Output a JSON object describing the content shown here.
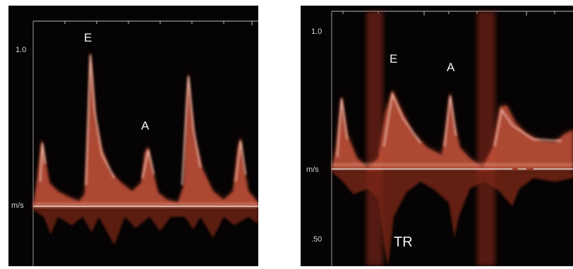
{
  "left_panel": {
    "scale_top": "1.0",
    "unit": "m/s",
    "label_e": "E",
    "label_a": "A"
  },
  "right_panel": {
    "scale_top": "1.0",
    "unit": "m/s",
    "scale_bottom": ".50",
    "label_e": "E",
    "label_a": "A",
    "label_tr": "TR"
  },
  "colors": {
    "background": "#050303",
    "spectrum_core": "#f4c7b8",
    "spectrum_mid": "#c8553c",
    "spectrum_dim": "#5a1a10",
    "baseline": "#d9d9d9",
    "text": "#e8e8e8"
  }
}
